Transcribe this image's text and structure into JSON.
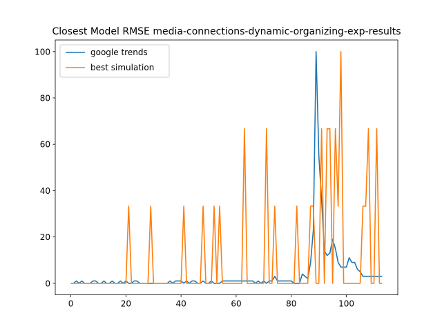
{
  "chart_data": {
    "type": "line",
    "title": "Closest Model RMSE media-connections-dynamic-organizing-exp-results",
    "xlabel": "",
    "ylabel": "",
    "xlim": [
      -5.65,
      118.65
    ],
    "ylim": [
      -5,
      105
    ],
    "xticks": [
      0,
      20,
      40,
      60,
      80,
      100
    ],
    "yticks": [
      0,
      20,
      40,
      60,
      80,
      100
    ],
    "grid": false,
    "legend_position": "upper-left",
    "series": [
      {
        "name": "google trends",
        "color": "#1f77b4",
        "x": [
          0,
          1,
          2,
          3,
          4,
          5,
          6,
          7,
          8,
          9,
          10,
          11,
          12,
          13,
          14,
          15,
          16,
          17,
          18,
          19,
          20,
          21,
          22,
          23,
          24,
          25,
          26,
          27,
          28,
          29,
          30,
          31,
          32,
          33,
          34,
          35,
          36,
          37,
          38,
          39,
          40,
          41,
          42,
          43,
          44,
          45,
          46,
          47,
          48,
          49,
          50,
          51,
          52,
          53,
          54,
          55,
          56,
          57,
          58,
          59,
          60,
          61,
          62,
          63,
          64,
          65,
          66,
          67,
          68,
          69,
          70,
          71,
          72,
          73,
          74,
          75,
          76,
          77,
          78,
          79,
          80,
          81,
          82,
          83,
          84,
          85,
          86,
          87,
          88,
          89,
          90,
          91,
          92,
          93,
          94,
          95,
          96,
          97,
          98,
          99,
          100,
          101,
          102,
          103,
          104,
          105,
          106,
          107,
          108,
          109,
          110,
          111,
          112,
          113
        ],
        "values": [
          0,
          0,
          1,
          0,
          1,
          0,
          0,
          0,
          1,
          1,
          0,
          0,
          1,
          0,
          0,
          1,
          0,
          0,
          1,
          0,
          1,
          0,
          0,
          1,
          1,
          0,
          0,
          0,
          0,
          0,
          0,
          0,
          0,
          0,
          0,
          0,
          1,
          0,
          1,
          1,
          1,
          0,
          1,
          0,
          1,
          1,
          0,
          0,
          1,
          0,
          0,
          1,
          0,
          0,
          0,
          1,
          1,
          1,
          1,
          1,
          1,
          1,
          1,
          1,
          1,
          1,
          1,
          0,
          1,
          0,
          1,
          0,
          1,
          1,
          3,
          1,
          1,
          1,
          1,
          1,
          1,
          0,
          0,
          0,
          4,
          3,
          2,
          9,
          23,
          100,
          55,
          36,
          14,
          12,
          13,
          19,
          15,
          9,
          7,
          7,
          7,
          11,
          9,
          9,
          6,
          5,
          3,
          3,
          3,
          3,
          3,
          3,
          3,
          3
        ]
      },
      {
        "name": "best simulation",
        "color": "#ff7f0e",
        "x": [
          0,
          1,
          2,
          3,
          4,
          5,
          6,
          7,
          8,
          9,
          10,
          11,
          12,
          13,
          14,
          15,
          16,
          17,
          18,
          19,
          20,
          21,
          22,
          23,
          24,
          25,
          26,
          27,
          28,
          29,
          30,
          31,
          32,
          33,
          34,
          35,
          36,
          37,
          38,
          39,
          40,
          41,
          42,
          43,
          44,
          45,
          46,
          47,
          48,
          49,
          50,
          51,
          52,
          53,
          54,
          55,
          56,
          57,
          58,
          59,
          60,
          61,
          62,
          63,
          64,
          65,
          66,
          67,
          68,
          69,
          70,
          71,
          72,
          73,
          74,
          75,
          76,
          77,
          78,
          79,
          80,
          81,
          82,
          83,
          84,
          85,
          86,
          87,
          88,
          89,
          90,
          91,
          92,
          93,
          94,
          95,
          96,
          97,
          98,
          99,
          100,
          101,
          102,
          103,
          104,
          105,
          106,
          107,
          108,
          109,
          110,
          111,
          112,
          113
        ],
        "values": [
          0,
          0,
          0,
          0,
          0,
          0,
          0,
          0,
          0,
          0,
          0,
          0,
          0,
          0,
          0,
          0,
          0,
          0,
          0,
          0,
          0,
          33.3,
          0,
          0,
          0,
          0,
          0,
          0,
          0,
          33.3,
          0,
          0,
          0,
          0,
          0,
          0,
          0,
          0,
          0,
          0,
          0,
          33.3,
          0,
          0,
          0,
          0,
          0,
          0,
          33.3,
          0,
          0,
          0,
          33.3,
          0,
          33.3,
          0,
          0,
          0,
          0,
          0,
          0,
          0,
          0,
          66.7,
          0,
          0,
          0,
          0,
          0,
          0,
          0,
          66.7,
          0,
          0,
          33.3,
          0,
          0,
          0,
          0,
          0,
          0,
          0,
          33.3,
          0,
          0,
          0,
          0,
          33.3,
          33.3,
          0,
          0,
          66.7,
          0,
          66.7,
          66.7,
          0,
          66.7,
          33.3,
          100,
          0,
          0,
          0,
          0,
          0,
          0,
          0,
          33.3,
          33.3,
          66.7,
          0,
          0,
          66.7,
          0,
          0
        ]
      }
    ]
  }
}
